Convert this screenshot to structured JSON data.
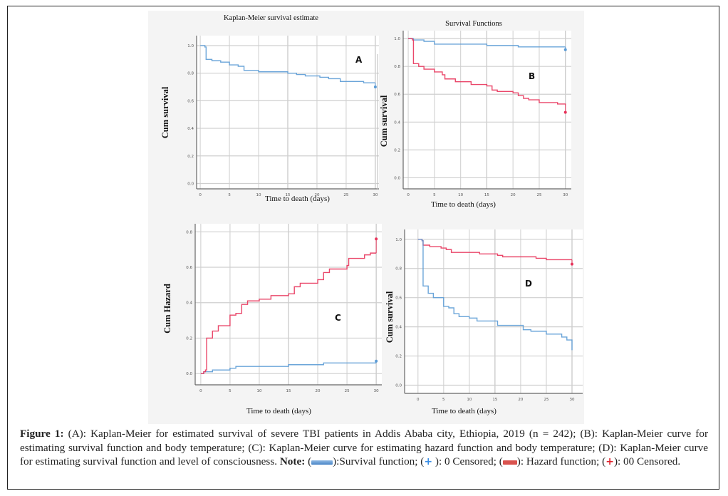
{
  "colors": {
    "survival_blue": "#5b9bd5",
    "hazard_red": "#e8335a",
    "grid": "#d6d6d6",
    "axis": "#666666",
    "panel_bg": "#ffffff",
    "figure_bg": "#f4f4f4"
  },
  "chart_data": [
    {
      "id": "A",
      "type": "line",
      "step": true,
      "title": "Kaplan-Meier survival estimate",
      "panel_letter": "A",
      "xlabel": "Time to death (days)",
      "ylabel": "Cum survival",
      "xlim": [
        0,
        30
      ],
      "ylim": [
        0,
        1
      ],
      "x_ticks": [
        "0",
        "5",
        "10",
        "15",
        "20",
        "25",
        "30"
      ],
      "y_ticks": [
        "0.0",
        "0.2",
        "0.4",
        "0.6",
        "0.8",
        "1.0"
      ],
      "grid": true,
      "series": [
        {
          "name": "Survival function",
          "color": "survival_blue",
          "x": [
            0,
            0.8,
            1,
            2,
            3.5,
            5,
            6.5,
            7.5,
            10,
            15,
            16.5,
            18,
            20.5,
            22,
            24,
            28,
            30
          ],
          "y": [
            1.0,
            0.99,
            0.9,
            0.89,
            0.88,
            0.86,
            0.85,
            0.82,
            0.81,
            0.8,
            0.79,
            0.78,
            0.77,
            0.76,
            0.74,
            0.73,
            0.73
          ],
          "censored": [
            {
              "x": 30,
              "y": 0.7
            }
          ]
        }
      ]
    },
    {
      "id": "B",
      "type": "line",
      "step": true,
      "title": "Survival Functions",
      "panel_letter": "B",
      "xlabel": "Time to death (days)",
      "ylabel": "Cum survival",
      "xlim": [
        0,
        30
      ],
      "ylim": [
        0,
        1
      ],
      "x_ticks": [
        "0",
        "5",
        "10",
        "15",
        "20",
        "25",
        "30"
      ],
      "y_ticks": [
        "0.0",
        "0.2",
        "0.4",
        "0.6",
        "0.8",
        "1.0"
      ],
      "grid": true,
      "series": [
        {
          "name": "Survival function",
          "color": "survival_blue",
          "x": [
            0,
            1,
            3,
            5,
            15,
            21,
            30
          ],
          "y": [
            1.0,
            0.99,
            0.98,
            0.96,
            0.95,
            0.94,
            0.94
          ],
          "censored": [
            {
              "x": 30,
              "y": 0.92
            }
          ]
        },
        {
          "name": "Hazard function",
          "color": "hazard_red",
          "x": [
            0,
            0.8,
            1,
            2,
            3,
            5,
            6.5,
            7,
            9,
            12,
            15,
            16,
            17,
            20,
            21,
            22,
            23,
            25,
            28.5,
            30
          ],
          "y": [
            1.0,
            0.99,
            0.82,
            0.8,
            0.78,
            0.76,
            0.74,
            0.71,
            0.69,
            0.67,
            0.66,
            0.63,
            0.62,
            0.61,
            0.59,
            0.57,
            0.56,
            0.54,
            0.53,
            0.52
          ],
          "censored": [
            {
              "x": 30,
              "y": 0.47
            }
          ]
        }
      ]
    },
    {
      "id": "C",
      "type": "line",
      "step": true,
      "title": "",
      "panel_letter": "C",
      "xlabel": "Time to death (days)",
      "ylabel": "Cum Hazard",
      "xlim": [
        0,
        30
      ],
      "ylim": [
        0,
        0.8
      ],
      "x_ticks": [
        "0",
        "5",
        "10",
        "15",
        "20",
        "25",
        "30"
      ],
      "y_ticks": [
        "0.0",
        "0.2",
        "0.4",
        "0.6",
        "0.8"
      ],
      "grid": true,
      "series": [
        {
          "name": "Survival function",
          "color": "survival_blue",
          "x": [
            0,
            0.5,
            2,
            5,
            6,
            15,
            21,
            30
          ],
          "y": [
            0.0,
            0.01,
            0.02,
            0.03,
            0.04,
            0.05,
            0.06,
            0.06
          ],
          "censored": [
            {
              "x": 30,
              "y": 0.07
            }
          ]
        },
        {
          "name": "Hazard function",
          "color": "hazard_red",
          "x": [
            0,
            0.5,
            0.8,
            1,
            2,
            3,
            5,
            6,
            7,
            8,
            10,
            12,
            15,
            16,
            17,
            20,
            21,
            22,
            25,
            25.3,
            28,
            29,
            30
          ],
          "y": [
            0.0,
            0.01,
            0.02,
            0.2,
            0.24,
            0.27,
            0.33,
            0.34,
            0.39,
            0.41,
            0.42,
            0.44,
            0.45,
            0.49,
            0.51,
            0.53,
            0.57,
            0.59,
            0.61,
            0.65,
            0.67,
            0.68,
            0.68
          ],
          "censored": [
            {
              "x": 30,
              "y": 0.76
            }
          ]
        }
      ]
    },
    {
      "id": "D",
      "type": "line",
      "step": true,
      "title": "",
      "panel_letter": "D",
      "xlabel": "Time to death (days)",
      "ylabel": "Cum survival",
      "xlim": [
        0,
        30
      ],
      "ylim": [
        0,
        1
      ],
      "x_ticks": [
        "0",
        "5",
        "10",
        "15",
        "20",
        "25",
        "30"
      ],
      "y_ticks": [
        "0.0",
        "0.2",
        "0.4",
        "0.6",
        "0.8",
        "1.0"
      ],
      "grid": true,
      "series": [
        {
          "name": "Hazard function",
          "color": "hazard_red",
          "x": [
            0,
            0.8,
            1,
            2.3,
            4.5,
            5.5,
            6.5,
            12,
            15.5,
            16.5,
            23,
            25,
            30
          ],
          "y": [
            1.0,
            0.99,
            0.96,
            0.95,
            0.94,
            0.93,
            0.91,
            0.9,
            0.89,
            0.88,
            0.87,
            0.86,
            0.86
          ],
          "censored": [
            {
              "x": 30,
              "y": 0.83
            }
          ]
        },
        {
          "name": "Survival function",
          "color": "survival_blue",
          "x": [
            0,
            0.8,
            1,
            2,
            3,
            5,
            6,
            7,
            8,
            10,
            11.5,
            15.5,
            20.5,
            22,
            25,
            28,
            29,
            30
          ],
          "y": [
            1.0,
            0.99,
            0.68,
            0.63,
            0.6,
            0.54,
            0.53,
            0.49,
            0.47,
            0.46,
            0.44,
            0.41,
            0.38,
            0.37,
            0.35,
            0.33,
            0.31,
            0.24
          ],
          "censored": []
        }
      ]
    }
  ],
  "caption": {
    "label": "Figure 1:",
    "part1": " (A): Kaplan-Meier for estimated survival of severe TBI patients in Addis Ababa city, Ethiopia, 2019 (n = 242); (B): Kaplan-Meier curve for estimating survival function and body temperature; (C): Kaplan-Meier curve for estimating hazard function and body temperature; (D): Kaplan-Meier curve for estimating survival function and level of consciousness. ",
    "note_label": "Note:",
    "legend_open1": " (",
    "legend_survival": "):Survival function; (",
    "legend_censored0_icon": "+",
    "legend_censored0": " ): 0 Censored; (",
    "legend_hazard": "): Hazard function; (",
    "legend_censored00_icon": "+",
    "legend_censored00": "): 00 Censored."
  }
}
